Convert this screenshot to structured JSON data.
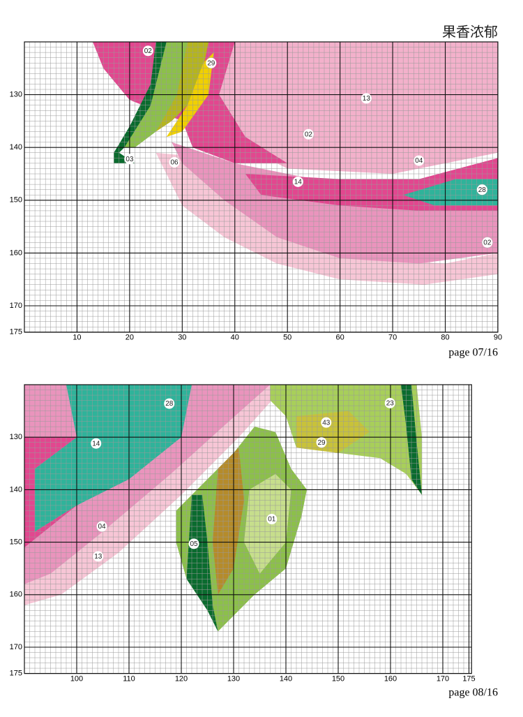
{
  "title": "果香浓郁",
  "pages": [
    {
      "page_label": "page 07/16",
      "xticks": [
        10,
        20,
        30,
        40,
        50,
        60,
        70,
        80,
        90
      ],
      "yticks": [
        130,
        140,
        150,
        160,
        170,
        175
      ],
      "symbols": [
        "02",
        "29",
        "13",
        "02",
        "04",
        "14",
        "28",
        "02",
        "03",
        "06"
      ]
    },
    {
      "page_label": "page 08/16",
      "xticks": [
        100,
        110,
        120,
        130,
        140,
        150,
        160,
        170,
        175
      ],
      "yticks": [
        130,
        140,
        150,
        160,
        170,
        175
      ],
      "symbols": [
        "28",
        "14",
        "04",
        "13",
        "43",
        "29",
        "23",
        "01",
        "05"
      ]
    }
  ]
}
